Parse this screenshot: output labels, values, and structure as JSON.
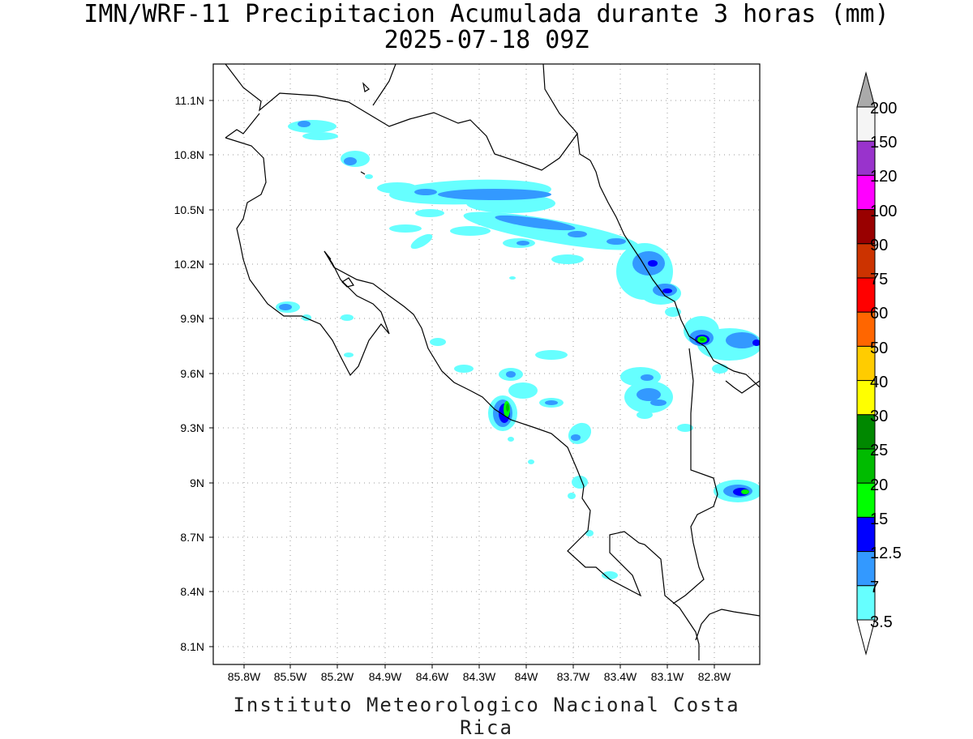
{
  "title": {
    "line1": "IMN/WRF-11 Precipitacion Acumulada durante 3 horas (mm)",
    "line2": "2025-07-18 09Z"
  },
  "footer": "Instituto Meteorologico Nacional Costa Rica",
  "map": {
    "lon_range": [
      -86.0,
      -82.4
    ],
    "lat_range": [
      8.0,
      11.3
    ],
    "lon_ticks": [
      "85.8W",
      "85.5W",
      "85.2W",
      "84.9W",
      "84.6W",
      "84.3W",
      "84W",
      "83.7W",
      "83.4W",
      "83.1W",
      "82.8W"
    ],
    "lat_ticks": [
      "11.1N",
      "10.8N",
      "10.5N",
      "10.2N",
      "9.9N",
      "9.6N",
      "9.3N",
      "9N",
      "8.7N",
      "8.4N",
      "8.1N"
    ],
    "grid": "dotted"
  },
  "colorbar": {
    "labels": [
      "200",
      "150",
      "120",
      "100",
      "90",
      "75",
      "60",
      "50",
      "40",
      "30",
      "25",
      "20",
      "15",
      "12.5",
      "7",
      "3.5"
    ],
    "colors": [
      "#f5f5f5",
      "#9933cc",
      "#ff00ff",
      "#990000",
      "#cc3300",
      "#ff0000",
      "#ff6600",
      "#ffcc00",
      "#ffff00",
      "#008800",
      "#00bb00",
      "#00ff00",
      "#0000ff",
      "#3399ff",
      "#66ffff"
    ],
    "top_arrow_color": "#aaaaaa",
    "bottom_arrow_color": "#ffffff"
  }
}
